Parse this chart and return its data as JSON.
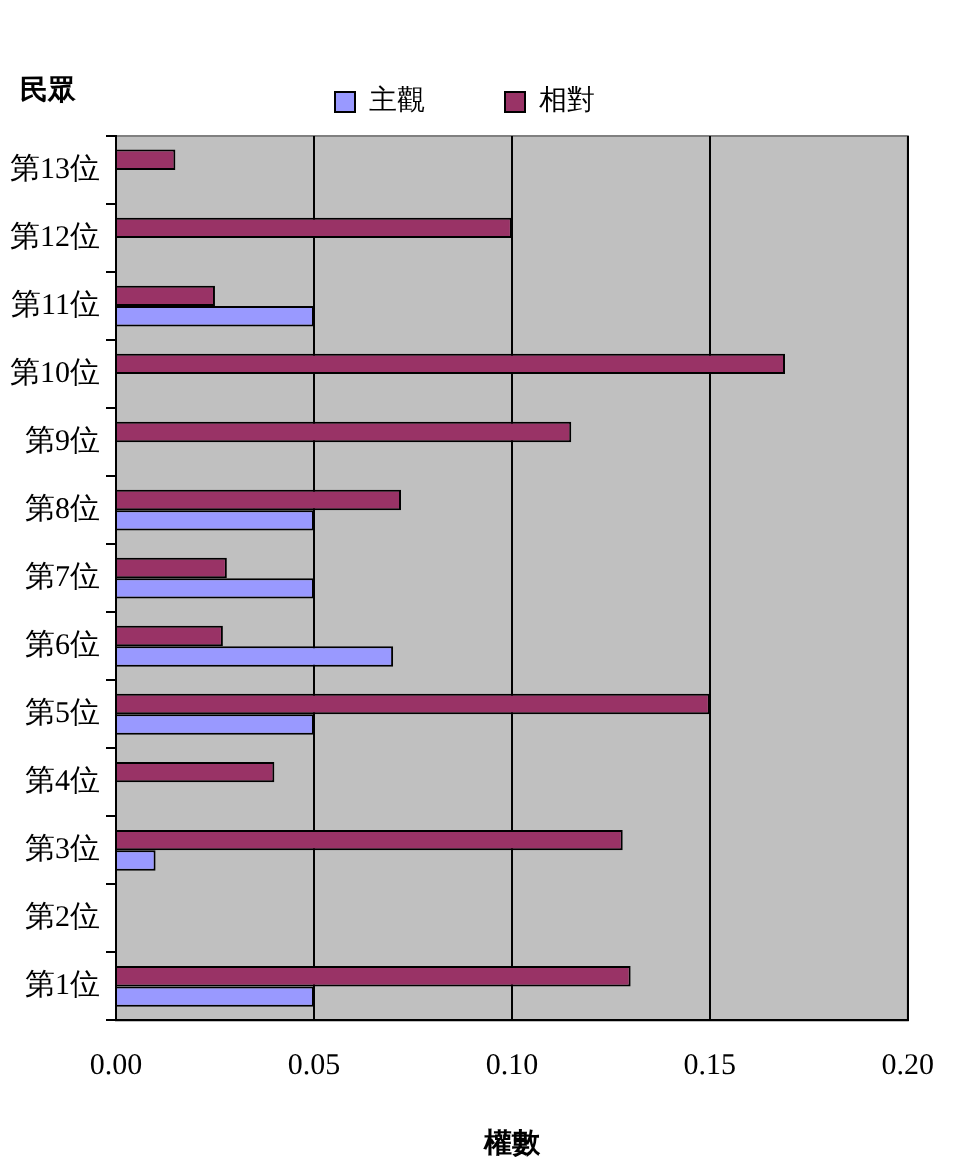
{
  "chart_data": {
    "type": "bar",
    "orientation": "horizontal",
    "ylabel": "民眾",
    "xlabel": "權數",
    "categories": [
      "第13位",
      "第12位",
      "第11位",
      "第10位",
      "第9位",
      "第8位",
      "第7位",
      "第6位",
      "第5位",
      "第4位",
      "第3位",
      "第2位",
      "第1位"
    ],
    "series": [
      {
        "name": "主觀",
        "color": "#9999ff",
        "values": [
          null,
          null,
          0.05,
          null,
          null,
          0.05,
          0.05,
          0.07,
          0.05,
          null,
          0.01,
          null,
          0.05
        ]
      },
      {
        "name": "相對",
        "color": "#993366",
        "values": [
          0.015,
          0.1,
          0.025,
          0.169,
          0.115,
          0.072,
          0.028,
          0.027,
          0.15,
          0.04,
          0.128,
          null,
          0.13
        ]
      }
    ],
    "xlim": [
      0,
      0.2
    ],
    "xticks": [
      {
        "value": 0,
        "label": "0.00"
      },
      {
        "value": 0.05,
        "label": "0.05"
      },
      {
        "value": 0.1,
        "label": "0.10"
      },
      {
        "value": 0.15,
        "label": "0.15"
      },
      {
        "value": 0.2,
        "label": "0.20"
      }
    ],
    "grid": "x",
    "legend": "top"
  }
}
